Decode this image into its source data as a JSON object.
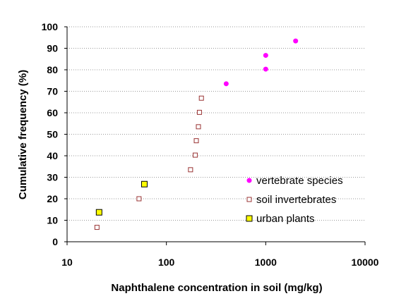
{
  "chart_data": {
    "type": "scatter",
    "title": "",
    "xlabel": "Naphthalene concentration in soil (mg/kg)",
    "ylabel": "Cumulative frequency (%)",
    "x_scale": "log",
    "xlim": [
      10,
      10000
    ],
    "ylim": [
      0,
      100
    ],
    "x_ticks": [
      "10",
      "100",
      "1000",
      "10000"
    ],
    "y_ticks": [
      "0",
      "10",
      "20",
      "30",
      "40",
      "50",
      "60",
      "70",
      "80",
      "90",
      "100"
    ],
    "grid": "horizontal",
    "legend_position": "right",
    "series": [
      {
        "name": "vertebrate species",
        "marker": "circle",
        "color": "#ff00ff",
        "points": [
          {
            "x": 400,
            "y": 73.5
          },
          {
            "x": 1000,
            "y": 80.3
          },
          {
            "x": 1000,
            "y": 86.7
          },
          {
            "x": 2000,
            "y": 93.4
          }
        ]
      },
      {
        "name": "soil invertebrates",
        "marker": "open-square",
        "color": "#993333",
        "points": [
          {
            "x": 20,
            "y": 6.7
          },
          {
            "x": 53,
            "y": 20
          },
          {
            "x": 175,
            "y": 33.5
          },
          {
            "x": 195,
            "y": 40.3
          },
          {
            "x": 200,
            "y": 47
          },
          {
            "x": 210,
            "y": 53.5
          },
          {
            "x": 215,
            "y": 60.2
          },
          {
            "x": 225,
            "y": 66.8
          }
        ]
      },
      {
        "name": "urban plants",
        "marker": "filled-square",
        "color": "#ffff00",
        "border_color": "#000000",
        "points": [
          {
            "x": 21,
            "y": 13.7
          },
          {
            "x": 60,
            "y": 26.8
          }
        ]
      }
    ]
  }
}
